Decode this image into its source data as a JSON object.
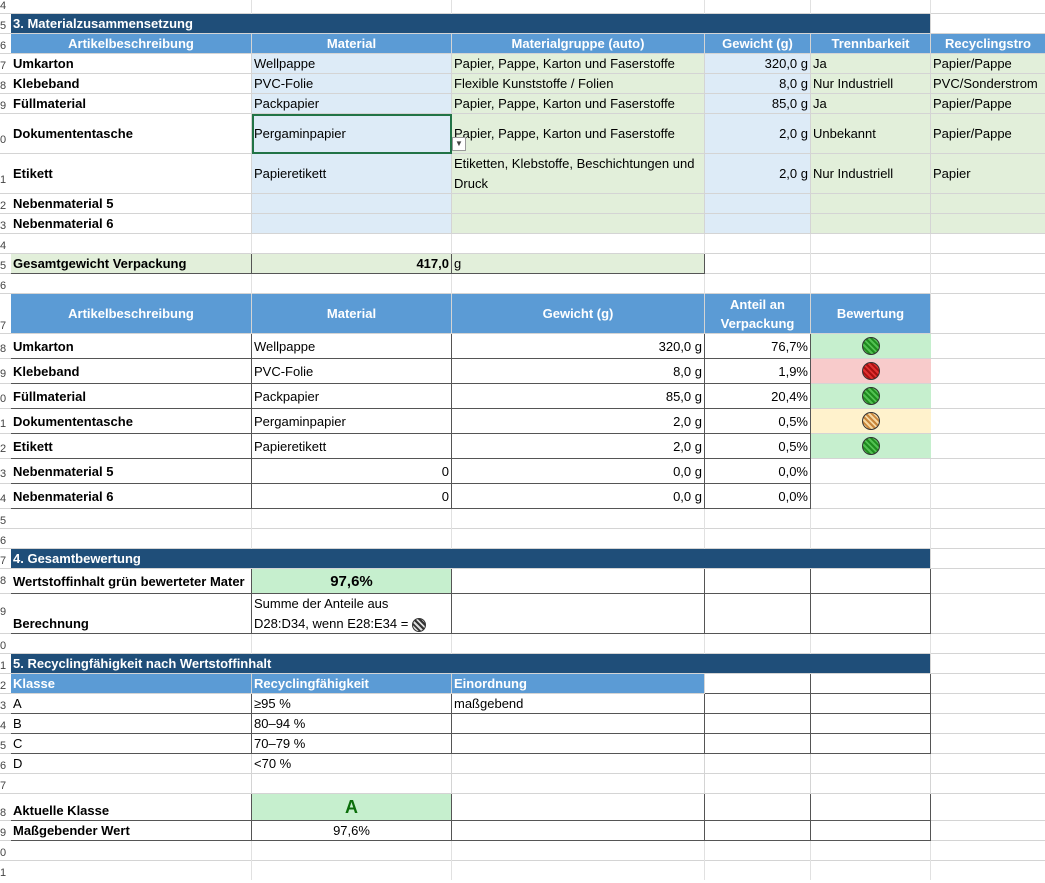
{
  "row_numbers": [
    "4",
    "5",
    "6",
    "7",
    "8",
    "9",
    "0",
    "1",
    "2",
    "3",
    "4",
    "5",
    "6",
    "7",
    "8",
    "9",
    "0",
    "1",
    "2",
    "3",
    "4",
    "5",
    "6",
    "7",
    "8",
    "9",
    "0",
    "1",
    "2",
    "3",
    "4",
    "5",
    "6",
    "7",
    "8",
    "9",
    "0",
    "1",
    "2",
    "3",
    "4",
    "5",
    "6",
    "7",
    "8",
    "9",
    "0",
    "1"
  ],
  "section3": {
    "title": "3. Materialzusammensetzung",
    "headers": [
      "Artikelbeschreibung",
      "Material",
      "Materialgruppe (auto)",
      "Gewicht (g)",
      "Trennbarkeit",
      "Recyclingstro"
    ],
    "rows": [
      {
        "desc": "Umkarton",
        "material": "Wellpappe",
        "group": "Papier, Pappe, Karton und Faserstoffe",
        "weight": "320,0 g",
        "sep": "Ja",
        "stream": "Papier/Pappe"
      },
      {
        "desc": "Klebeband",
        "material": "PVC-Folie",
        "group": "Flexible Kunststoffe / Folien",
        "weight": "8,0 g",
        "sep": "Nur Industriell",
        "stream": "PVC/Sonderstrom"
      },
      {
        "desc": "Füllmaterial",
        "material": "Packpapier",
        "group": "Papier, Pappe, Karton und Faserstoffe",
        "weight": "85,0 g",
        "sep": "Ja",
        "stream": "Papier/Pappe"
      },
      {
        "desc": "Dokumententasche",
        "material": "Pergaminpapier",
        "group": "Papier, Pappe, Karton und Faserstoffe",
        "weight": "2,0 g",
        "sep": "Unbekannt",
        "stream": "Papier/Pappe"
      },
      {
        "desc": "Etikett",
        "material": "Papieretikett",
        "group": "Etiketten, Klebstoffe, Beschichtungen und Druck",
        "weight": "2,0 g",
        "sep": "Nur Industriell",
        "stream": "Papier"
      },
      {
        "desc": "Nebenmaterial 5",
        "material": "",
        "group": "",
        "weight": "",
        "sep": "",
        "stream": ""
      },
      {
        "desc": "Nebenmaterial 6",
        "material": "",
        "group": "",
        "weight": "",
        "sep": "",
        "stream": ""
      }
    ],
    "total_label": "Gesamtgewicht Verpackung",
    "total_value": "417,0",
    "total_unit": "g"
  },
  "eval_table": {
    "headers": [
      "Artikelbeschreibung",
      "Material",
      "Gewicht (g)",
      "Anteil an Verpackung",
      "Bewertung"
    ],
    "rows": [
      {
        "desc": "Umkarton",
        "material": "Wellpappe",
        "weight": "320,0 g",
        "share": "76,7%",
        "rating": "green"
      },
      {
        "desc": "Klebeband",
        "material": "PVC-Folie",
        "weight": "8,0 g",
        "share": "1,9%",
        "rating": "red"
      },
      {
        "desc": "Füllmaterial",
        "material": "Packpapier",
        "weight": "85,0 g",
        "share": "20,4%",
        "rating": "green"
      },
      {
        "desc": "Dokumententasche",
        "material": "Pergaminpapier",
        "weight": "2,0 g",
        "share": "0,5%",
        "rating": "orange"
      },
      {
        "desc": "Etikett",
        "material": "Papieretikett",
        "weight": "2,0 g",
        "share": "0,5%",
        "rating": "green"
      },
      {
        "desc": "Nebenmaterial 5",
        "material": "0",
        "weight": "0,0 g",
        "share": "0,0%",
        "rating": ""
      },
      {
        "desc": "Nebenmaterial 6",
        "material": "0",
        "weight": "0,0 g",
        "share": "0,0%",
        "rating": ""
      }
    ]
  },
  "section4": {
    "title": "4. Gesamtbewertung",
    "content_label": "Wertstoffinhalt grün bewerteter Mater",
    "content_value": "97,6%",
    "calc_label": "Berechnung",
    "calc_line1": "Summe der Anteile aus",
    "calc_line2": "D28:D34, wenn E28:E34 ="
  },
  "section5": {
    "title": "5. Recyclingfähigkeit nach Wertstoffinhalt",
    "headers": [
      "Klasse",
      "Recyclingfähigkeit",
      "Einordnung"
    ],
    "classes": [
      {
        "klasse": "A",
        "range": "≥95 %",
        "einordnung": "maßgebend"
      },
      {
        "klasse": "B",
        "range": "80–94 %",
        "einordnung": ""
      },
      {
        "klasse": "C",
        "range": "70–79 %",
        "einordnung": ""
      },
      {
        "klasse": "D",
        "range": "<70 %",
        "einordnung": ""
      }
    ],
    "current_label": "Aktuelle Klasse",
    "current_value": "A",
    "decisive_label": "Maßgebender Wert",
    "decisive_value": "97,6%"
  },
  "colors": {
    "header_dark": "#1f4e79",
    "header_blue": "#5b9bd5",
    "input_blue": "#ddebf7",
    "auto_green": "#e2efda",
    "good_green": "#c6efce",
    "bad_red": "#f8cbcb",
    "warn_yellow": "#fff2cc"
  }
}
